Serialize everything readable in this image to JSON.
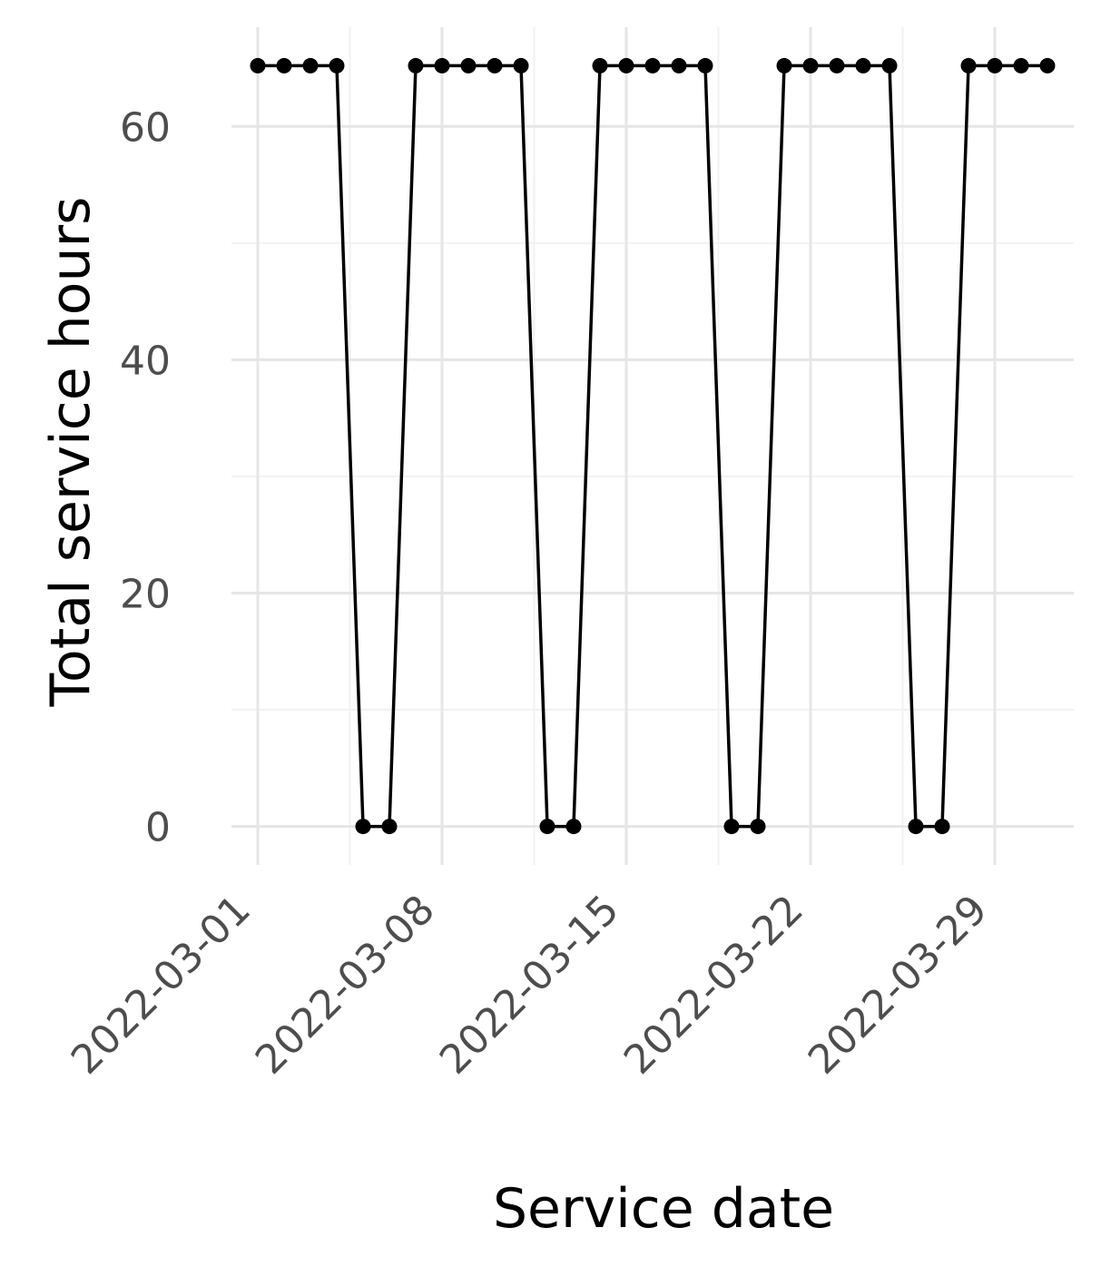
{
  "chart_data": {
    "type": "line",
    "title": "",
    "xlabel": "Service date",
    "ylabel": "Total service hours",
    "x_tick_labels": [
      "2022-03-01",
      "2022-03-08",
      "2022-03-15",
      "2022-03-22",
      "2022-03-29"
    ],
    "y_tick_labels": [
      "0",
      "20",
      "40",
      "60"
    ],
    "y_ticks": [
      0,
      20,
      40,
      60
    ],
    "xlim": [
      "2022-02-28",
      "2022-04-01"
    ],
    "ylim": [
      -3.3,
      68.5
    ],
    "grid": true,
    "legend": "none",
    "series": [
      {
        "color": "#000000",
        "x": [
          "2022-03-01",
          "2022-03-02",
          "2022-03-03",
          "2022-03-04",
          "2022-03-05",
          "2022-03-06",
          "2022-03-07",
          "2022-03-08",
          "2022-03-09",
          "2022-03-10",
          "2022-03-11",
          "2022-03-12",
          "2022-03-13",
          "2022-03-14",
          "2022-03-15",
          "2022-03-16",
          "2022-03-17",
          "2022-03-18",
          "2022-03-19",
          "2022-03-20",
          "2022-03-21",
          "2022-03-22",
          "2022-03-23",
          "2022-03-24",
          "2022-03-25",
          "2022-03-26",
          "2022-03-27",
          "2022-03-28",
          "2022-03-29",
          "2022-03-30",
          "2022-03-31"
        ],
        "y": [
          65.2,
          65.2,
          65.2,
          65.2,
          0,
          0,
          65.2,
          65.2,
          65.2,
          65.2,
          65.2,
          0,
          0,
          65.2,
          65.2,
          65.2,
          65.2,
          65.2,
          0,
          0,
          65.2,
          65.2,
          65.2,
          65.2,
          65.2,
          0,
          0,
          65.2,
          65.2,
          65.2,
          65.2
        ]
      }
    ]
  }
}
